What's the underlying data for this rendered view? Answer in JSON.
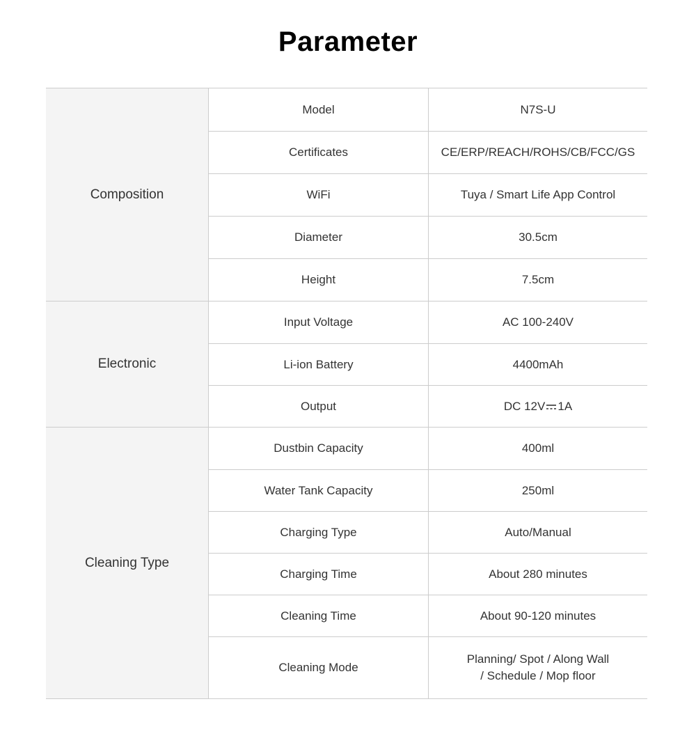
{
  "page": {
    "title": "Parameter"
  },
  "colors": {
    "background": "#ffffff",
    "border": "#cccccc",
    "group_background": "#f4f4f4",
    "text": "#333333",
    "title_text": "#000000"
  },
  "icons": {
    "dc_symbol": "dc-symbol-icon"
  },
  "table": {
    "groups": [
      {
        "label": "Composition",
        "rows": [
          {
            "label": "Model",
            "value": "N7S-U"
          },
          {
            "label": "Certificates",
            "value": "CE/ERP/REACH/ROHS/CB/FCC/GS"
          },
          {
            "label": "WiFi",
            "value": "Tuya / Smart Life App Control"
          },
          {
            "label": "Diameter",
            "value": "30.5cm"
          },
          {
            "label": "Height",
            "value": "7.5cm"
          }
        ]
      },
      {
        "label": "Electronic",
        "rows": [
          {
            "label": "Input Voltage",
            "value": "AC 100-240V"
          },
          {
            "label": "Li-ion Battery",
            "value": "4400mAh"
          },
          {
            "label": "Output",
            "value": "DC 12V⎓1A"
          }
        ]
      },
      {
        "label": "Cleaning Type",
        "rows": [
          {
            "label": "Dustbin Capacity",
            "value": "400ml"
          },
          {
            "label": "Water Tank Capacity",
            "value": "250ml"
          },
          {
            "label": "Charging Type",
            "value": "Auto/Manual"
          },
          {
            "label": "Charging Time",
            "value": "About 280 minutes"
          },
          {
            "label": "Cleaning Time",
            "value": "About 90-120 minutes"
          },
          {
            "label": "Cleaning Mode",
            "value": "Planning/ Spot / Along Wall\n/ Schedule / Mop floor"
          }
        ]
      }
    ]
  }
}
